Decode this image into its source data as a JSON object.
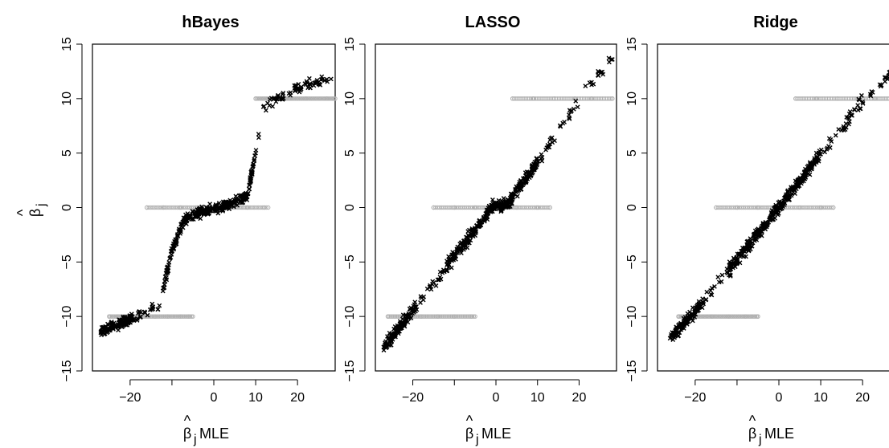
{
  "figure": {
    "ylabel_symbol": "β",
    "ylabel_subscript": "j",
    "xlabel_symbol": "β",
    "xlabel_subscript": "j",
    "xlabel_suffix": " MLE"
  },
  "chart_data": [
    {
      "type": "scatter",
      "title": "hBayes",
      "xlabel": "β̂j MLE",
      "ylabel": "β̂j",
      "xlim": [
        -29,
        29
      ],
      "ylim": [
        -15,
        15
      ],
      "xticks": [
        -20,
        0,
        10,
        20
      ],
      "yticks": [
        -15,
        -10,
        -5,
        0,
        5,
        10,
        15
      ],
      "grid": false,
      "truth_x_ranges": {
        "-10": [
          -25,
          -5
        ],
        "0": [
          -16,
          13
        ],
        "10": [
          10,
          29
        ]
      },
      "series": [
        {
          "marker": "circle",
          "color": "#b0b0b0",
          "kind": "true-beta",
          "points": [
            [
              -25,
              -10
            ],
            [
              -23,
              -10
            ],
            [
              -20,
              -10
            ],
            [
              -17,
              -10
            ],
            [
              -14,
              -10
            ],
            [
              -11,
              -10
            ],
            [
              -8,
              -10
            ],
            [
              -6,
              -10
            ],
            [
              -16,
              0
            ],
            [
              -12,
              0
            ],
            [
              -8,
              0
            ],
            [
              -4,
              0
            ],
            [
              0,
              0
            ],
            [
              4,
              0
            ],
            [
              8,
              0
            ],
            [
              12,
              0
            ],
            [
              10,
              10
            ],
            [
              14,
              10
            ],
            [
              18,
              10
            ],
            [
              22,
              10
            ],
            [
              27,
              10
            ]
          ]
        },
        {
          "marker": "x",
          "color": "#000000",
          "kind": "estimate",
          "trend": [
            [
              -27,
              -11.5
            ],
            [
              -20,
              -10.2
            ],
            [
              -13,
              -9
            ],
            [
              -10,
              -4
            ],
            [
              -7,
              -1
            ],
            [
              -4,
              -0.5
            ],
            [
              4,
              0.3
            ],
            [
              8,
              1
            ],
            [
              10,
              5
            ],
            [
              12,
              9.3
            ],
            [
              15,
              10
            ],
            [
              22,
              11.3
            ],
            [
              28,
              11.8
            ]
          ]
        }
      ]
    },
    {
      "type": "scatter",
      "title": "LASSO",
      "xlabel": "β̂j MLE",
      "ylabel": "β̂j",
      "xlim": [
        -29,
        29
      ],
      "ylim": [
        -15,
        15
      ],
      "xticks": [
        -20,
        0,
        10,
        20
      ],
      "yticks": [
        -15,
        -10,
        -5,
        0,
        5,
        10,
        15
      ],
      "grid": false,
      "truth_x_ranges": {
        "-10": [
          -26,
          -5
        ],
        "0": [
          -15,
          13
        ],
        "10": [
          4,
          28
        ]
      },
      "series": [
        {
          "marker": "circle",
          "color": "#b0b0b0",
          "kind": "true-beta",
          "points": [
            [
              -26,
              -10
            ],
            [
              -22,
              -10
            ],
            [
              -18,
              -10
            ],
            [
              -14,
              -10
            ],
            [
              -10,
              -10
            ],
            [
              -6,
              -10
            ],
            [
              -15,
              0
            ],
            [
              -10,
              0
            ],
            [
              -5,
              0
            ],
            [
              0,
              0
            ],
            [
              5,
              0
            ],
            [
              10,
              0
            ],
            [
              13,
              0
            ],
            [
              4,
              10
            ],
            [
              9,
              10
            ],
            [
              14,
              10
            ],
            [
              19,
              10
            ],
            [
              23,
              10
            ],
            [
              28,
              10
            ]
          ]
        },
        {
          "marker": "x",
          "color": "#000000",
          "kind": "estimate",
          "trend": [
            [
              -27,
              -12.8
            ],
            [
              -20,
              -9.4
            ],
            [
              -10,
              -4.5
            ],
            [
              -3,
              -1
            ],
            [
              -1,
              0
            ],
            [
              3,
              0.3
            ],
            [
              6,
              2
            ],
            [
              12,
              5.3
            ],
            [
              18,
              8.8
            ],
            [
              23,
              11.5
            ],
            [
              28,
              13.6
            ]
          ]
        }
      ]
    },
    {
      "type": "scatter",
      "title": "Ridge",
      "xlabel": "β̂j MLE",
      "ylabel": "β̂j",
      "xlim": [
        -29,
        29
      ],
      "ylim": [
        -15,
        15
      ],
      "xticks": [
        -20,
        0,
        10,
        20
      ],
      "yticks": [
        -15,
        -10,
        -5,
        0,
        5,
        10,
        15
      ],
      "grid": false,
      "truth_x_ranges": {
        "-10": [
          -24,
          -5
        ],
        "0": [
          -15,
          13
        ],
        "10": [
          4,
          28
        ]
      },
      "series": [
        {
          "marker": "circle",
          "color": "#b0b0b0",
          "kind": "true-beta",
          "points": [
            [
              -24,
              -10
            ],
            [
              -20,
              -10
            ],
            [
              -16,
              -10
            ],
            [
              -12,
              -10
            ],
            [
              -8,
              -10
            ],
            [
              -5,
              -10
            ],
            [
              -15,
              0
            ],
            [
              -10,
              0
            ],
            [
              -5,
              0
            ],
            [
              0,
              0
            ],
            [
              5,
              0
            ],
            [
              10,
              0
            ],
            [
              13,
              0
            ],
            [
              4,
              10
            ],
            [
              9,
              10
            ],
            [
              14,
              10
            ],
            [
              19,
              10
            ],
            [
              23,
              10
            ],
            [
              28,
              10
            ]
          ]
        },
        {
          "marker": "x",
          "color": "#000000",
          "kind": "estimate",
          "trend": [
            [
              -26,
              -12
            ],
            [
              -20,
              -9.5
            ],
            [
              -10,
              -4.8
            ],
            [
              0,
              0
            ],
            [
              10,
              4.9
            ],
            [
              20,
              9.7
            ],
            [
              27,
              12.3
            ]
          ]
        }
      ]
    }
  ]
}
